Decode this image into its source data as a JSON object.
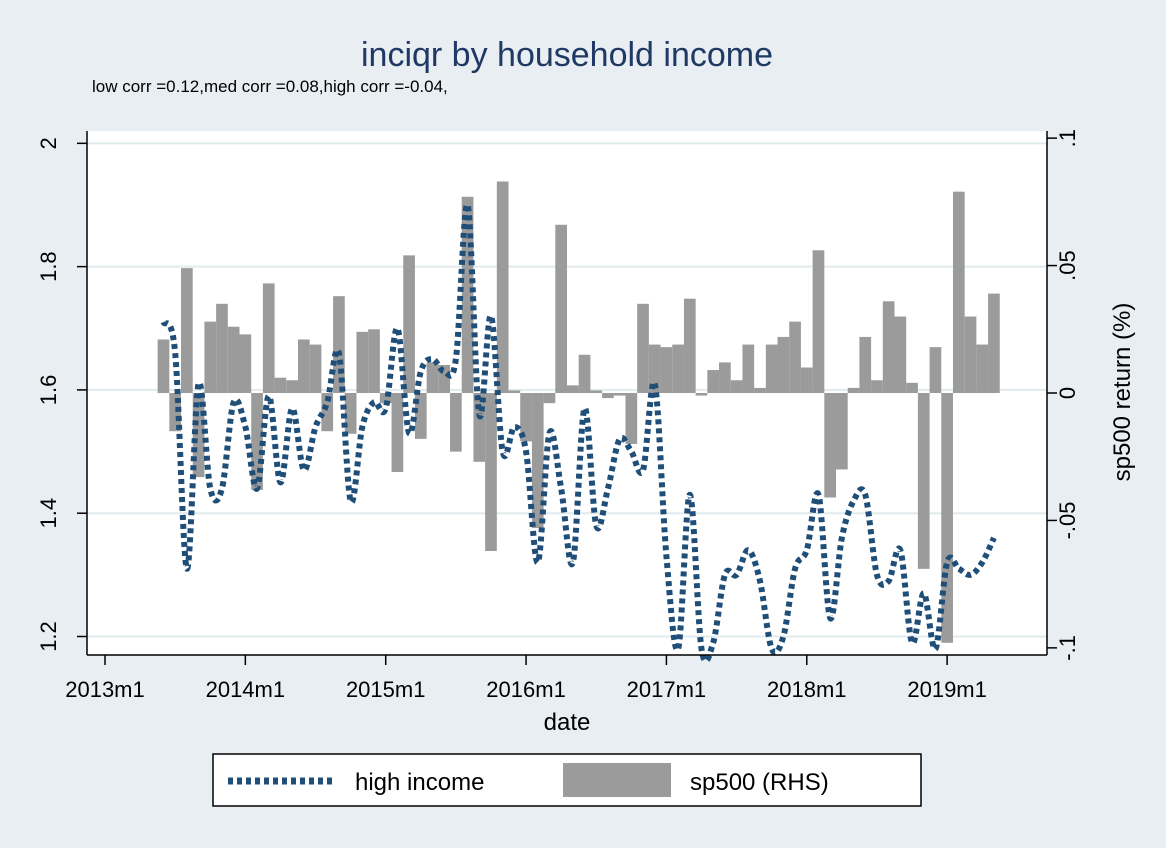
{
  "chart_data": {
    "type": "bar+line",
    "title": "inciqr by household income",
    "subtitle": "low corr =0.12,med corr =0.08,high corr =-0.04,",
    "xlabel": "date",
    "ylabel_left": "",
    "ylabel_right": "sp500 return (%)",
    "x_ticks": [
      "2013m1",
      "2014m1",
      "2015m1",
      "2016m1",
      "2017m1",
      "2018m1",
      "2019m1"
    ],
    "y_left_ticks": [
      "1.2",
      "1.4",
      "1.6",
      "1.8",
      "2"
    ],
    "y_right_ticks": [
      "-.1",
      "-.05",
      "0",
      ".05",
      ".1"
    ],
    "xlim": [
      "2013m1",
      "2019m8"
    ],
    "ylim_left": [
      1.17,
      2.02
    ],
    "ylim_right": [
      -0.1028,
      0.1028
    ],
    "grid": true,
    "legend_position": "bottom",
    "colors": {
      "line": "#1f4e79",
      "bars": "#9b9b9b",
      "background": "#e8eef1",
      "plot_bg": "#ffffff",
      "grid": "#e0ebee"
    },
    "series": [
      {
        "name": "high income",
        "type": "line",
        "style": "dotted",
        "axis": "left",
        "x": [
          "2013m6",
          "2013m7",
          "2013m8",
          "2013m9",
          "2013m10",
          "2013m11",
          "2013m12",
          "2014m1",
          "2014m2",
          "2014m3",
          "2014m4",
          "2014m5",
          "2014m6",
          "2014m7",
          "2014m8",
          "2014m9",
          "2014m10",
          "2014m11",
          "2014m12",
          "2015m1",
          "2015m2",
          "2015m3",
          "2015m4",
          "2015m5",
          "2015m6",
          "2015m7",
          "2015m8",
          "2015m9",
          "2015m10",
          "2015m11",
          "2015m12",
          "2016m1",
          "2016m2",
          "2016m3",
          "2016m4",
          "2016m5",
          "2016m6",
          "2016m7",
          "2016m8",
          "2016m9",
          "2016m10",
          "2016m11",
          "2016m12",
          "2017m1",
          "2017m2",
          "2017m3",
          "2017m4",
          "2017m5",
          "2017m6",
          "2017m7",
          "2017m8",
          "2017m9",
          "2017m10",
          "2017m11",
          "2017m12",
          "2018m1",
          "2018m2",
          "2018m3",
          "2018m4",
          "2018m5",
          "2018m6",
          "2018m7",
          "2018m8",
          "2018m9",
          "2018m10",
          "2018m11",
          "2018m12",
          "2019m1",
          "2019m2",
          "2019m3",
          "2019m4",
          "2019m5"
        ],
        "values": [
          1.71,
          1.66,
          1.31,
          1.61,
          1.44,
          1.44,
          1.58,
          1.54,
          1.44,
          1.59,
          1.45,
          1.57,
          1.47,
          1.54,
          1.58,
          1.66,
          1.42,
          1.54,
          1.58,
          1.57,
          1.7,
          1.53,
          1.63,
          1.65,
          1.63,
          1.65,
          1.9,
          1.56,
          1.72,
          1.5,
          1.54,
          1.5,
          1.32,
          1.53,
          1.44,
          1.32,
          1.57,
          1.38,
          1.44,
          1.52,
          1.5,
          1.47,
          1.61,
          1.33,
          1.18,
          1.43,
          1.18,
          1.19,
          1.3,
          1.3,
          1.34,
          1.29,
          1.18,
          1.2,
          1.31,
          1.34,
          1.43,
          1.23,
          1.36,
          1.42,
          1.43,
          1.3,
          1.29,
          1.34,
          1.19,
          1.27,
          1.18,
          1.32,
          1.31,
          1.3,
          1.32,
          1.36
        ]
      },
      {
        "name": "sp500 (RHS)",
        "type": "bar",
        "axis": "right",
        "x": [
          "2013m6",
          "2013m7",
          "2013m8",
          "2013m9",
          "2013m10",
          "2013m11",
          "2013m12",
          "2014m1",
          "2014m2",
          "2014m3",
          "2014m4",
          "2014m5",
          "2014m6",
          "2014m7",
          "2014m8",
          "2014m9",
          "2014m10",
          "2014m11",
          "2014m12",
          "2015m1",
          "2015m2",
          "2015m3",
          "2015m4",
          "2015m5",
          "2015m6",
          "2015m7",
          "2015m8",
          "2015m9",
          "2015m10",
          "2015m11",
          "2015m12",
          "2016m1",
          "2016m2",
          "2016m3",
          "2016m4",
          "2016m5",
          "2016m6",
          "2016m7",
          "2016m8",
          "2016m9",
          "2016m10",
          "2016m11",
          "2016m12",
          "2017m1",
          "2017m2",
          "2017m3",
          "2017m4",
          "2017m5",
          "2017m6",
          "2017m7",
          "2017m8",
          "2017m9",
          "2017m10",
          "2017m11",
          "2017m12",
          "2018m1",
          "2018m2",
          "2018m3",
          "2018m4",
          "2018m5",
          "2018m6",
          "2018m7",
          "2018m8",
          "2018m9",
          "2018m10",
          "2018m11",
          "2018m12",
          "2019m1",
          "2019m2",
          "2019m3",
          "2019m4",
          "2019m5"
        ],
        "values": [
          0.021,
          -0.015,
          0.049,
          -0.033,
          0.028,
          0.035,
          0.026,
          0.023,
          -0.038,
          0.043,
          0.006,
          0.005,
          0.021,
          0.019,
          -0.015,
          0.038,
          -0.016,
          0.024,
          0.025,
          -0.004,
          -0.031,
          0.054,
          -0.018,
          0.012,
          0.011,
          -0.023,
          0.077,
          -0.027,
          -0.062,
          0.083,
          0.001,
          -0.019,
          -0.053,
          -0.004,
          0.066,
          0.003,
          0.015,
          0.001,
          -0.002,
          -0.001,
          -0.02,
          0.035,
          0.019,
          0.018,
          0.019,
          0.037,
          -0.001,
          0.009,
          0.012,
          0.005,
          0.019,
          0.002,
          0.019,
          0.022,
          0.028,
          0.01,
          0.056,
          -0.041,
          -0.03,
          0.002,
          0.022,
          0.005,
          0.036,
          0.03,
          0.004,
          -0.069,
          0.018,
          -0.098,
          0.079,
          0.03,
          0.019,
          0.039
        ]
      }
    ]
  }
}
